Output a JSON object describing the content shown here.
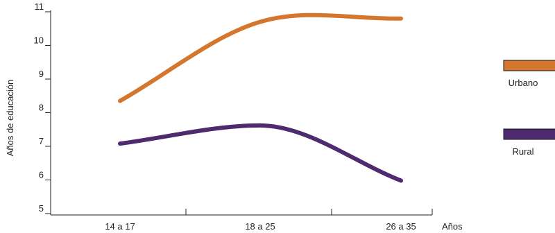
{
  "chart_data": {
    "type": "line",
    "categories": [
      "14 a 17",
      "18 a 25",
      "26 a 35"
    ],
    "xlabel": "Años",
    "ylabel": "Años de educación",
    "ylim": [
      5,
      11
    ],
    "yticks": [
      5,
      6,
      7,
      8,
      9,
      10,
      11
    ],
    "grid": false,
    "legend_position": "right",
    "series": [
      {
        "name": "Urbano",
        "color": "#D4762E",
        "values": [
          8.35,
          10.7,
          10.8
        ]
      },
      {
        "name": "Rural",
        "color": "#4E2A6E",
        "values": [
          7.08,
          7.62,
          5.98
        ]
      }
    ]
  }
}
